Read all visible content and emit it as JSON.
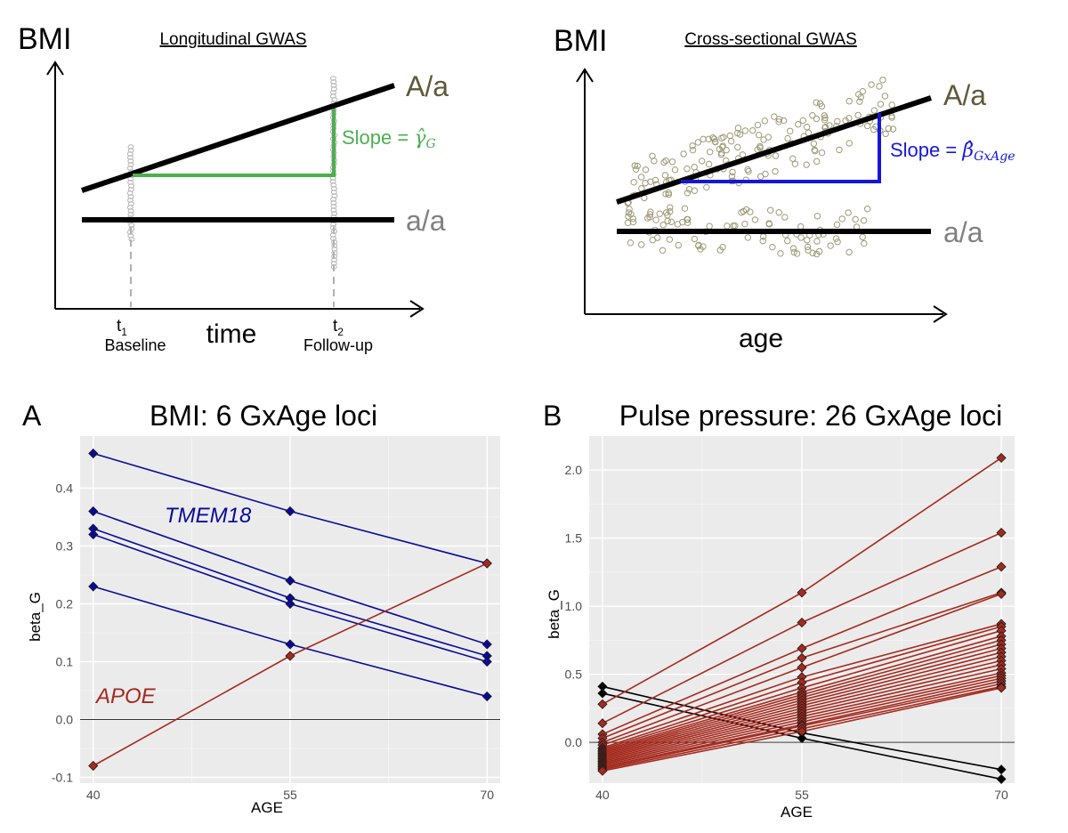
{
  "colors": {
    "black": "#000000",
    "olive": "#5e5938",
    "grey": "#808080",
    "green": "#4caf50",
    "blue": "#1616d8",
    "navy": "#0a0a9a",
    "red": "#a52a1e",
    "panel_bg": "#ebebeb",
    "dot": "#9e9a78"
  },
  "diagrams": {
    "longitudinal": {
      "y_label": "BMI",
      "title": "Longitudinal GWAS",
      "line_upper_label": "A/a",
      "line_lower_label": "a/a",
      "slope_label": "Slope = ",
      "slope_symbol": "γ̂",
      "slope_subscript": "G",
      "t1_label": "t",
      "t1_subscript": "1",
      "t1_caption": "Baseline",
      "t2_label": "t",
      "t2_subscript": "2",
      "t2_caption": "Follow-up",
      "x_label": "time"
    },
    "cross_sectional": {
      "y_label": "BMI",
      "title": "Cross-sectional GWAS",
      "line_upper_label": "A/a",
      "line_lower_label": "a/a",
      "slope_label": "Slope = ",
      "slope_symbol": "β̂",
      "slope_subscript": "GxAge",
      "x_label": "age"
    }
  },
  "chart_data": [
    {
      "panel": "A",
      "type": "line",
      "title": "BMI: 6 GxAge loci",
      "xlabel": "AGE",
      "ylabel": "beta_G",
      "x": [
        40,
        55,
        70
      ],
      "xlim": [
        39,
        71
      ],
      "ylim": [
        -0.11,
        0.49
      ],
      "y_ticks": [
        -0.1,
        0.0,
        0.1,
        0.2,
        0.3,
        0.4
      ],
      "y_tick_labels": [
        "-0.1",
        "0.0",
        "0.1",
        "0.2",
        "0.3",
        "0.4"
      ],
      "x_tick_labels": [
        "40",
        "55",
        "70"
      ],
      "annotations": [
        {
          "text": "TMEM18",
          "color": "navy"
        },
        {
          "text": "APOE",
          "color": "red"
        }
      ],
      "series": [
        {
          "values": [
            0.46,
            0.36,
            0.27
          ],
          "color": "navy"
        },
        {
          "values": [
            0.36,
            0.24,
            0.13
          ],
          "color": "navy"
        },
        {
          "values": [
            0.33,
            0.21,
            0.11
          ],
          "color": "navy"
        },
        {
          "values": [
            0.32,
            0.2,
            0.1
          ],
          "color": "navy"
        },
        {
          "values": [
            0.23,
            0.13,
            0.04
          ],
          "color": "navy"
        },
        {
          "values": [
            -0.08,
            0.11,
            0.27
          ],
          "color": "red"
        }
      ]
    },
    {
      "panel": "B",
      "type": "line",
      "title": "Pulse pressure: 26 GxAge loci",
      "xlabel": "AGE",
      "ylabel": "beta_G",
      "x": [
        40,
        55,
        70
      ],
      "xlim": [
        39,
        71
      ],
      "ylim": [
        -0.3,
        2.25
      ],
      "y_ticks": [
        0.0,
        0.5,
        1.0,
        1.5,
        2.0
      ],
      "y_tick_labels": [
        "0.0",
        "0.5",
        "1.0",
        "1.5",
        "2.0"
      ],
      "x_tick_labels": [
        "40",
        "55",
        "70"
      ],
      "series": [
        {
          "values": [
            0.41,
            0.07,
            -0.2
          ],
          "color": "black"
        },
        {
          "values": [
            0.36,
            0.03,
            -0.27
          ],
          "color": "black"
        },
        {
          "values": [
            0.28,
            1.1,
            2.09
          ],
          "color": "red"
        },
        {
          "values": [
            0.14,
            0.88,
            1.54
          ],
          "color": "red"
        },
        {
          "values": [
            0.06,
            0.69,
            1.29
          ],
          "color": "red"
        },
        {
          "values": [
            0.03,
            0.62,
            1.1
          ],
          "color": "red"
        },
        {
          "values": [
            0.0,
            0.55,
            1.09
          ],
          "color": "red"
        },
        {
          "values": [
            -0.02,
            0.48,
            0.87
          ],
          "color": "red"
        },
        {
          "values": [
            -0.04,
            0.44,
            0.85
          ],
          "color": "red"
        },
        {
          "values": [
            -0.05,
            0.4,
            0.82
          ],
          "color": "red"
        },
        {
          "values": [
            -0.06,
            0.37,
            0.78
          ],
          "color": "red"
        },
        {
          "values": [
            -0.07,
            0.35,
            0.75
          ],
          "color": "red"
        },
        {
          "values": [
            -0.08,
            0.33,
            0.72
          ],
          "color": "red"
        },
        {
          "values": [
            -0.09,
            0.31,
            0.69
          ],
          "color": "red"
        },
        {
          "values": [
            -0.1,
            0.29,
            0.66
          ],
          "color": "red"
        },
        {
          "values": [
            -0.11,
            0.27,
            0.63
          ],
          "color": "red"
        },
        {
          "values": [
            -0.12,
            0.25,
            0.6
          ],
          "color": "red"
        },
        {
          "values": [
            -0.13,
            0.23,
            0.57
          ],
          "color": "red"
        },
        {
          "values": [
            -0.14,
            0.21,
            0.54
          ],
          "color": "red"
        },
        {
          "values": [
            -0.15,
            0.19,
            0.51
          ],
          "color": "red"
        },
        {
          "values": [
            -0.16,
            0.17,
            0.49
          ],
          "color": "red"
        },
        {
          "values": [
            -0.17,
            0.15,
            0.47
          ],
          "color": "red"
        },
        {
          "values": [
            -0.18,
            0.13,
            0.45
          ],
          "color": "red"
        },
        {
          "values": [
            -0.19,
            0.12,
            0.43
          ],
          "color": "red"
        },
        {
          "values": [
            -0.2,
            0.1,
            0.41
          ],
          "color": "red"
        },
        {
          "values": [
            -0.21,
            0.08,
            0.4
          ],
          "color": "red"
        }
      ]
    }
  ]
}
